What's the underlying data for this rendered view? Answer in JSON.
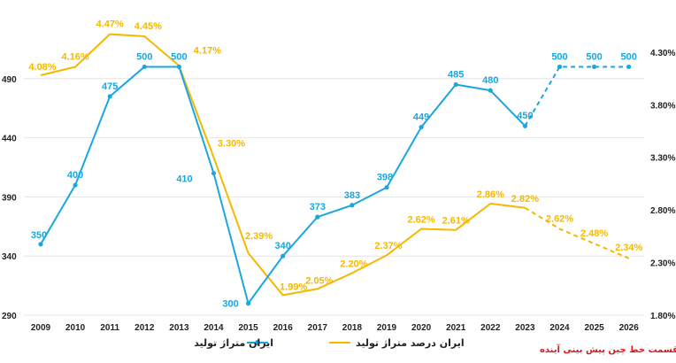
{
  "chart_data": {
    "type": "line",
    "categories": [
      "2009",
      "2010",
      "2011",
      "2012",
      "2013",
      "2014",
      "2015",
      "2016",
      "2017",
      "2018",
      "2019",
      "2020",
      "2021",
      "2022",
      "2023",
      "2024",
      "2025",
      "2026"
    ],
    "left_axis": {
      "min": 290,
      "max": 540,
      "ticks": [
        "290",
        "340",
        "390",
        "440",
        "490"
      ],
      "tick_values": [
        290,
        340,
        390,
        440,
        490
      ]
    },
    "right_axis": {
      "min": 1.8,
      "max": 4.61,
      "ticks": [
        "1.80%",
        "2.30%",
        "2.80%",
        "3.30%",
        "3.80%",
        "4.30%"
      ],
      "tick_values": [
        1.8,
        2.3,
        2.8,
        3.3,
        3.8,
        4.3
      ]
    },
    "series": [
      {
        "name": "ایران متراژ تولید",
        "axis": "left",
        "color": "#1aa7e0",
        "values": [
          350,
          400,
          475,
          500,
          500,
          410,
          300,
          340,
          373,
          383,
          398,
          449,
          485,
          480,
          450,
          500,
          500,
          500
        ],
        "labels": [
          "350",
          "400",
          "475",
          "500",
          "500",
          "410",
          "300",
          "340",
          "373",
          "383",
          "398",
          "449",
          "485",
          "480",
          "450",
          "500",
          "500",
          "500"
        ],
        "forecast_from_index": 14
      },
      {
        "name": "ایران درصد متراژ تولید",
        "axis": "right",
        "color": "#f5b800",
        "values": [
          4.08,
          4.16,
          4.47,
          4.45,
          4.17,
          3.3,
          2.39,
          1.99,
          2.05,
          2.2,
          2.37,
          2.62,
          2.61,
          2.86,
          2.82,
          2.62,
          2.48,
          2.34
        ],
        "labels": [
          "4.08%",
          "4.16%",
          "4.47%",
          "4.45%",
          "4.17%",
          "3.30%",
          "2.39%",
          "1.99%",
          "2.05%",
          "2.20%",
          "2.37%",
          "2.62%",
          "2.61%",
          "2.86%",
          "2.82%",
          "2.62%",
          "2.48%",
          "2.34%"
        ],
        "forecast_from_index": 14
      }
    ],
    "forecast_note": "قسمت خط چین پیش بینی آینده",
    "grid": true,
    "legend_position": "bottom"
  }
}
